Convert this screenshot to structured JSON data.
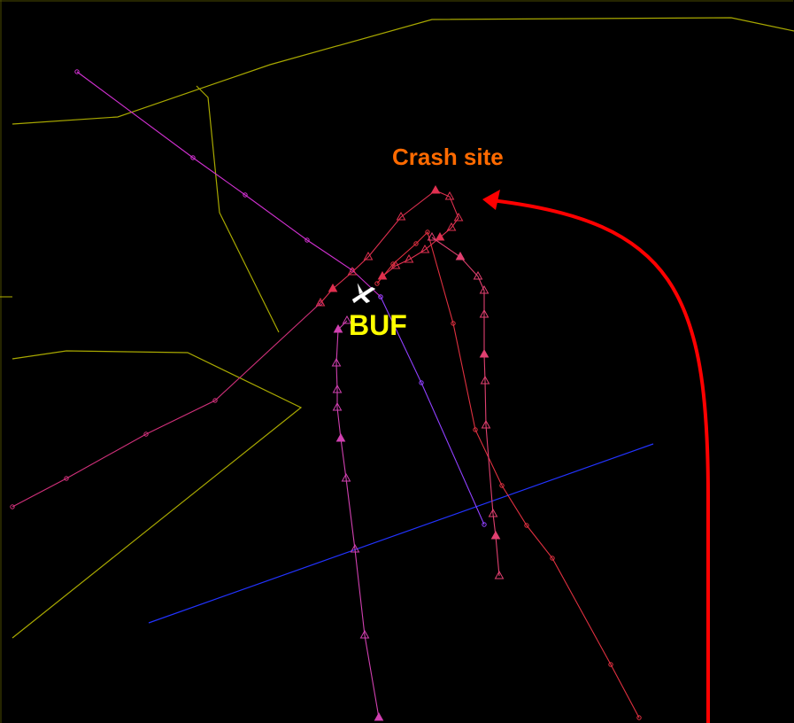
{
  "labels": {
    "crash_site": "Crash site",
    "airport": "BUF"
  }
}
